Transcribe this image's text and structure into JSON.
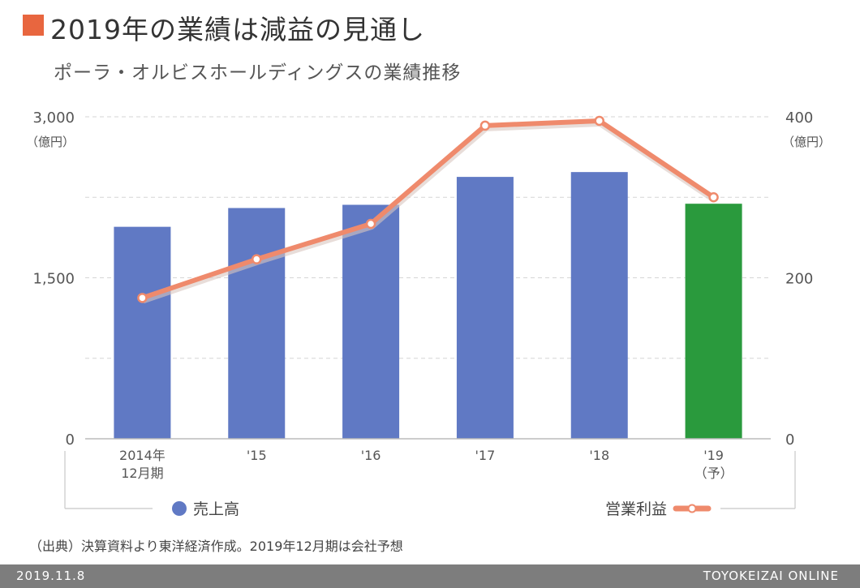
{
  "header": {
    "title": "2019年の業績は減益の見通し",
    "subtitle": "ポーラ・オルビスホールディングスの業績推移"
  },
  "footer": {
    "source": "（出典）決算資料より東洋経済作成。2019年12月期は会社予想",
    "date": "2019.11.8",
    "brand": "TOYOKEIZAI ONLINE"
  },
  "colors": {
    "title_marker": "#e8663f",
    "bar": "#6079c4",
    "bar_forecast": "#2a9a3d",
    "line": "#ef8a6c",
    "footer_bg": "#7d7d7d"
  },
  "chart_data": {
    "type": "bar",
    "categories": [
      [
        "2014年",
        "12月期"
      ],
      [
        "'15"
      ],
      [
        "'16"
      ],
      [
        "'17"
      ],
      [
        "'18"
      ],
      [
        "'19",
        "（予）"
      ]
    ],
    "series": [
      {
        "name": "売上高",
        "type": "bar",
        "axis": "left",
        "values": [
          1975,
          2150,
          2180,
          2440,
          2485,
          2190
        ],
        "forecast_index": 5
      },
      {
        "name": "営業利益",
        "type": "line",
        "axis": "right",
        "values": [
          175,
          223,
          267,
          389,
          395,
          300
        ]
      }
    ],
    "y_left": {
      "range": [
        0,
        3000
      ],
      "ticks": [
        0,
        1500,
        3000
      ],
      "tick_labels": [
        "0",
        "1,500",
        "3,000"
      ],
      "unit": "（億円）"
    },
    "y_right": {
      "range": [
        0,
        400
      ],
      "ticks": [
        0,
        200,
        400
      ],
      "tick_labels": [
        "0",
        "200",
        "400"
      ],
      "unit": "（億円）"
    },
    "gridlines": "dashed, horizontal",
    "legend": "bottom"
  }
}
